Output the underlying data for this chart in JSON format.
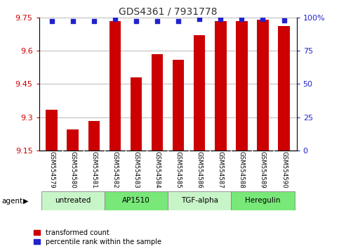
{
  "title": "GDS4361 / 7931778",
  "samples": [
    "GSM554579",
    "GSM554580",
    "GSM554581",
    "GSM554582",
    "GSM554583",
    "GSM554584",
    "GSM554585",
    "GSM554586",
    "GSM554587",
    "GSM554588",
    "GSM554589",
    "GSM554590"
  ],
  "red_values": [
    9.335,
    9.245,
    9.285,
    9.735,
    9.48,
    9.585,
    9.56,
    9.67,
    9.735,
    9.735,
    9.74,
    9.71
  ],
  "blue_values": [
    97,
    97,
    97,
    99,
    97,
    97,
    97,
    99,
    99,
    99,
    99,
    98
  ],
  "ylim_left": [
    9.15,
    9.75
  ],
  "ylim_right": [
    0,
    100
  ],
  "yticks_left": [
    9.15,
    9.3,
    9.45,
    9.6,
    9.75
  ],
  "yticks_right": [
    0,
    25,
    50,
    75,
    100
  ],
  "ytick_labels_right": [
    "0",
    "25",
    "50",
    "75",
    "100%"
  ],
  "groups": [
    {
      "label": "untreated",
      "start": 0,
      "end": 3,
      "color": "#c8f5c8"
    },
    {
      "label": "AP1510",
      "start": 3,
      "end": 6,
      "color": "#78e878"
    },
    {
      "label": "TGF-alpha",
      "start": 6,
      "end": 9,
      "color": "#c8f5c8"
    },
    {
      "label": "Heregulin",
      "start": 9,
      "end": 12,
      "color": "#78e878"
    }
  ],
  "bar_color": "#cc0000",
  "dot_color": "#2222cc",
  "tick_color_left": "#cc0000",
  "tick_color_right": "#2222cc",
  "background_color": "#ffffff",
  "bar_width": 0.55,
  "dot_size": 18,
  "sample_label_bg": "#c8c8c8",
  "legend_red_label": "transformed count",
  "legend_blue_label": "percentile rank within the sample",
  "agent_label": "agent"
}
